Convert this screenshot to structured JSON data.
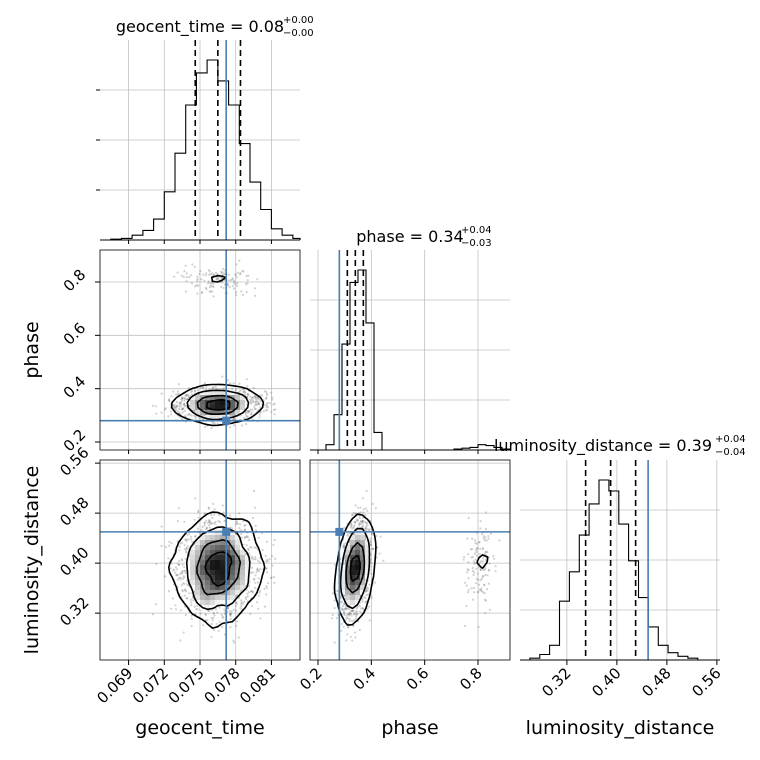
{
  "chart_data": {
    "type": "corner",
    "parameters": [
      "geocent_time",
      "phase",
      "luminosity_distance"
    ],
    "truths": {
      "geocent_time": 0.0772,
      "phase": 0.28,
      "luminosity_distance": 0.45
    },
    "colors": {
      "truth": "#4a7fb5",
      "hist": "#000000",
      "grid": "#c0c0c0",
      "samples": "#7a7a7a"
    },
    "titles": [
      {
        "param": "geocent_time",
        "label": "geocent_time",
        "value": "0.08",
        "plus": "+0.00",
        "minus": "−0.00"
      },
      {
        "param": "phase",
        "label": "phase",
        "value": "0.34",
        "plus": "+0.04",
        "minus": "−0.03"
      },
      {
        "param": "luminosity_distance",
        "label": "luminosity_distance",
        "value": "0.39",
        "plus": "+0.04",
        "minus": "−0.04"
      }
    ],
    "axes": {
      "geocent_time": {
        "range": [
          0.0666,
          0.0834
        ],
        "ticks": [
          0.069,
          0.072,
          0.075,
          0.078,
          0.081
        ],
        "tick_labels": [
          "0.069",
          "0.072",
          "0.075",
          "0.078",
          "0.081"
        ]
      },
      "phase": {
        "range": [
          0.17,
          0.92
        ],
        "ticks": [
          0.2,
          0.4,
          0.6,
          0.8
        ],
        "tick_labels": [
          "0.2",
          "0.4",
          "0.6",
          "0.8"
        ]
      },
      "luminosity_distance": {
        "range": [
          0.245,
          0.565
        ],
        "ticks": [
          0.32,
          0.4,
          0.48,
          0.56
        ],
        "tick_labels": [
          "0.32",
          "0.40",
          "0.48",
          "0.56"
        ]
      }
    },
    "quantiles": {
      "geocent_time": [
        0.0746,
        0.0765,
        0.0784
      ],
      "phase": [
        0.31,
        0.34,
        0.37
      ],
      "luminosity_distance": [
        0.35,
        0.39,
        0.43
      ]
    },
    "hist1d": {
      "geocent_time": {
        "edges": [
          0.0666,
          0.0675,
          0.0684,
          0.0693,
          0.0702,
          0.0711,
          0.072,
          0.0729,
          0.0738,
          0.0747,
          0.0756,
          0.0765,
          0.0774,
          0.0783,
          0.0792,
          0.0801,
          0.081,
          0.0819,
          0.0828,
          0.0834
        ],
        "counts": [
          0,
          0.5,
          1,
          3,
          6,
          13,
          30,
          54,
          84,
          104,
          112,
          99,
          84,
          60,
          36,
          19,
          7,
          3,
          1
        ]
      },
      "phase": {
        "edges": [
          0.17,
          0.2,
          0.23,
          0.26,
          0.29,
          0.32,
          0.35,
          0.38,
          0.41,
          0.44,
          0.47,
          0.5,
          0.53,
          0.56,
          0.59,
          0.62,
          0.65,
          0.68,
          0.71,
          0.74,
          0.77,
          0.8,
          0.83,
          0.86,
          0.89,
          0.92
        ],
        "counts": [
          0,
          0,
          3,
          20,
          60,
          95,
          102,
          72,
          10,
          0,
          0,
          0,
          0,
          0,
          0,
          0,
          0,
          0,
          0.5,
          1,
          1.5,
          3,
          2.5,
          1.5,
          0.5
        ]
      },
      "luminosity_distance": {
        "edges": [
          0.245,
          0.2608,
          0.2766,
          0.2924,
          0.3082,
          0.324,
          0.3398,
          0.3556,
          0.3714,
          0.3872,
          0.403,
          0.4188,
          0.4346,
          0.4504,
          0.4662,
          0.482,
          0.4978,
          0.5136,
          0.5294,
          0.5452,
          0.565
        ],
        "counts": [
          0,
          1,
          3,
          8,
          32,
          48,
          68,
          85,
          98,
          92,
          74,
          54,
          34,
          18,
          8,
          4,
          2,
          1,
          0,
          0
        ]
      }
    },
    "clusters": {
      "phase": [
        {
          "mean": 0.34,
          "sd": 0.028,
          "weight": 0.9
        },
        {
          "mean": 0.81,
          "sd": 0.03,
          "weight": 0.1
        }
      ],
      "geocent_time": {
        "mean": 0.0765,
        "sd": 0.0017
      },
      "luminosity_distance": [
        {
          "phase_mean": 0.34,
          "mean": 0.39,
          "sd": 0.04,
          "corr_phase": 0.35
        },
        {
          "phase_mean": 0.81,
          "mean": 0.4,
          "sd": 0.035,
          "corr_phase": 0.0
        }
      ]
    }
  }
}
